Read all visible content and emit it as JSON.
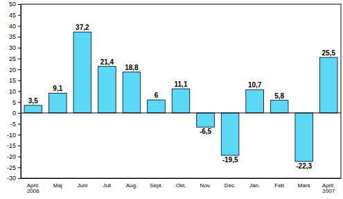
{
  "chart_data": {
    "type": "bar",
    "categories": [
      "April.\n2006",
      "Maj",
      "Juni",
      "Juli",
      "Aug.",
      "Sept.",
      "Okt.",
      "Nov.",
      "Dec.",
      "Jan.",
      "Feb",
      "Mars",
      "April.\n2007"
    ],
    "values": [
      3.5,
      9.1,
      37.2,
      21.4,
      18.8,
      6,
      11.1,
      -6.5,
      -19.5,
      10.7,
      5.8,
      -22.3,
      25.5
    ],
    "value_labels": [
      "3,5",
      "9,1",
      "37,2",
      "21,4",
      "18,8",
      "6",
      "11,1",
      "-6,5",
      "-19,5",
      "10,7",
      "5,8",
      "-22,3",
      "25,5"
    ],
    "data_labels": true,
    "color": "#5bd8f5",
    "ylim": [
      -30,
      50
    ],
    "yticks": [
      -30,
      -25,
      -20,
      -15,
      -10,
      -5,
      0,
      5,
      10,
      15,
      20,
      25,
      30,
      35,
      40,
      45,
      50
    ],
    "grid": false
  }
}
